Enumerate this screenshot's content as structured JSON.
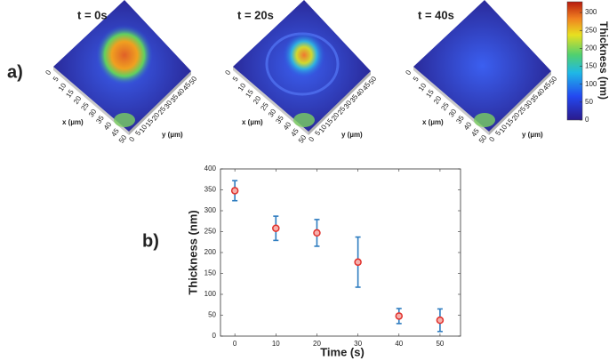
{
  "panel_labels": [
    "a)",
    "b)"
  ],
  "surface_plots": {
    "titles": [
      "t = 0s",
      "t = 20s",
      "t = 40s"
    ],
    "x_label": "x (µm)",
    "y_label": "y (µm)",
    "ticks": [
      0,
      5,
      10,
      15,
      20,
      25,
      30,
      35,
      40,
      45,
      50
    ]
  },
  "colorbar": {
    "label": "Thickness (nm)",
    "lim": [
      0,
      330
    ],
    "ticks": [
      0,
      50,
      100,
      150,
      200,
      250,
      300
    ]
  },
  "chart_data": {
    "type": "errorbar",
    "x_label": "Time (s)",
    "y_label": "Thickness (nm)",
    "x": [
      0,
      10,
      20,
      30,
      40,
      50
    ],
    "values": [
      348,
      258,
      247,
      177,
      48,
      38
    ],
    "errors": [
      24,
      29,
      32,
      60,
      18,
      27
    ],
    "color": "#2f7dc0",
    "marker_color": "#e0312c",
    "xlim": [
      -3.5,
      55
    ],
    "ylim": [
      0,
      400
    ],
    "xticks": [
      0,
      10,
      20,
      30,
      40,
      50
    ],
    "yticks": [
      0,
      50,
      100,
      150,
      200,
      250,
      300,
      350,
      400
    ]
  }
}
